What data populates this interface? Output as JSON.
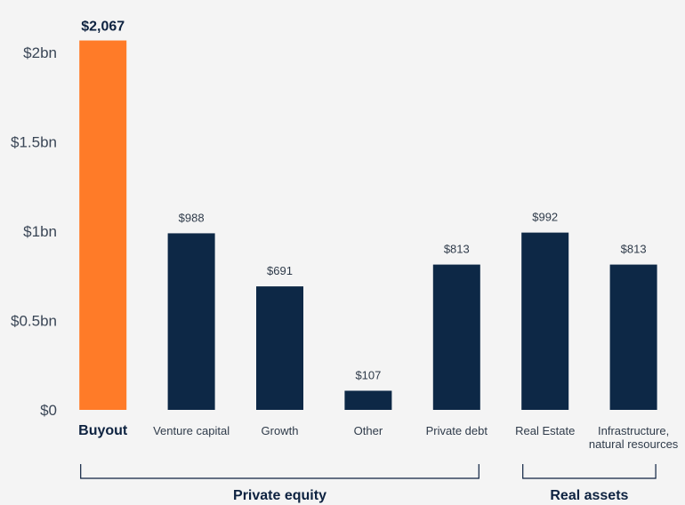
{
  "chart_data": {
    "type": "bar",
    "title": "",
    "xlabel": "",
    "ylabel": "",
    "ylim": [
      0,
      2000
    ],
    "y_ticks": [
      {
        "value": 0,
        "label": "$0"
      },
      {
        "value": 500,
        "label": "$0.5bn"
      },
      {
        "value": 1000,
        "label": "$1bn"
      },
      {
        "value": 1500,
        "label": "$1.5bn"
      },
      {
        "value": 2000,
        "label": "$2bn"
      }
    ],
    "bars": [
      {
        "category": "Buyout",
        "category_lines": [
          "Buyout"
        ],
        "value": 2067,
        "label": "$2,067",
        "highlight": true
      },
      {
        "category": "Venture capital",
        "category_lines": [
          "Venture capital"
        ],
        "value": 988,
        "label": "$988",
        "highlight": false
      },
      {
        "category": "Growth",
        "category_lines": [
          "Growth"
        ],
        "value": 691,
        "label": "$691",
        "highlight": false
      },
      {
        "category": "Other",
        "category_lines": [
          "Other"
        ],
        "value": 107,
        "label": "$107",
        "highlight": false
      },
      {
        "category": "Private debt",
        "category_lines": [
          "Private debt"
        ],
        "value": 813,
        "label": "$813",
        "highlight": false
      },
      {
        "category": "Real Estate",
        "category_lines": [
          "Real Estate"
        ],
        "value": 992,
        "label": "$992",
        "highlight": false
      },
      {
        "category": "Infrastructure, natural resources",
        "category_lines": [
          "Infrastructure,",
          "natural resources"
        ],
        "value": 813,
        "label": "$813",
        "highlight": false
      }
    ],
    "groups": [
      {
        "name": "Private equity",
        "from": 0,
        "to": 4
      },
      {
        "name": "Real assets",
        "from": 5,
        "to": 6
      }
    ],
    "colors": {
      "primary": "#0d2846",
      "highlight": "#ff7b28"
    }
  }
}
